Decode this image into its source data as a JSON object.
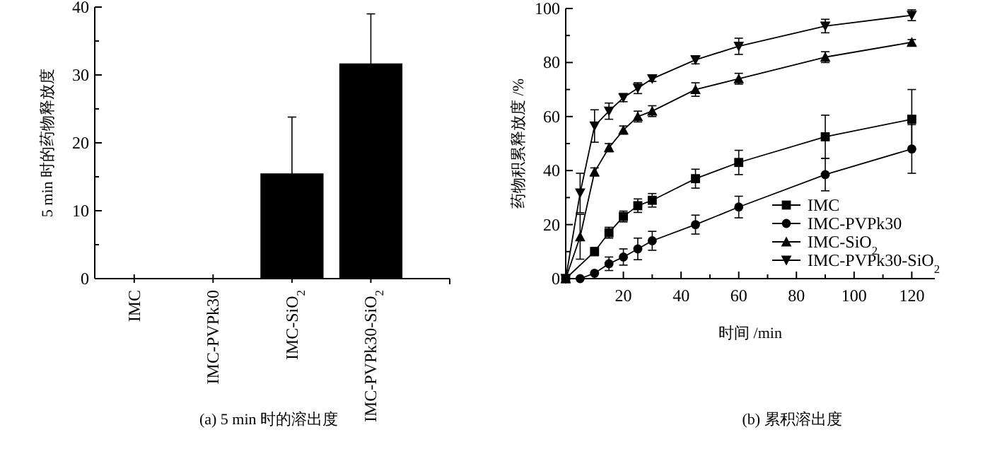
{
  "chart_data": [
    {
      "type": "bar",
      "title": "(a) 5 min 时的溶出度",
      "ylabel": "5 min 时的药物释放度",
      "categories": [
        "IMC",
        "IMC-PVPk30",
        "IMC-SiO$_{2}$",
        "IMC-PVPk30-SiO$_{2}$"
      ],
      "values": [
        0,
        0,
        15.5,
        31.7
      ],
      "errors": [
        null,
        null,
        8.3,
        7.3
      ],
      "color": "#000000",
      "ylim": [
        0,
        40
      ],
      "yticks": [
        0,
        {
          "value": 5,
          "label": null
        },
        10,
        {
          "value": 15,
          "label": null
        },
        20,
        {
          "value": 25,
          "label": null
        },
        30,
        {
          "value": 35,
          "label": null
        },
        40
      ]
    },
    {
      "type": "line",
      "title": "(b) 累积溶出度",
      "xlabel": "时间 /min",
      "ylabel": "药物积累释放度 /%",
      "xlim": [
        0,
        128
      ],
      "ylim": [
        0,
        100
      ],
      "legend": "bottom right",
      "line_style": "solid",
      "xticks": [
        {
          "value": 10,
          "label": null
        },
        20,
        {
          "value": 30,
          "label": null
        },
        40,
        {
          "value": 50,
          "label": null
        },
        60,
        {
          "value": 70,
          "label": null
        },
        80,
        {
          "value": 90,
          "label": null
        },
        100,
        {
          "value": 110,
          "label": null
        },
        120
      ],
      "yticks": [
        0,
        {
          "value": 10,
          "label": null
        },
        20,
        {
          "value": 30,
          "label": null
        },
        40,
        {
          "value": 50,
          "label": null
        },
        60,
        {
          "value": 70,
          "label": null
        },
        80,
        {
          "value": 90,
          "label": null
        },
        100
      ],
      "series": [
        {
          "name": "IMC",
          "color": "#000000",
          "marker": "square",
          "x": [
            0,
            10,
            15,
            20,
            25,
            30,
            45,
            60,
            90,
            120
          ],
          "values": [
            0,
            10,
            17,
            23,
            27,
            29,
            37,
            43,
            52.5,
            59
          ],
          "errors": [
            null,
            1.5,
            2,
            2,
            2.5,
            2.5,
            3.5,
            4.5,
            8,
            11
          ]
        },
        {
          "name": "IMC-PVPk30",
          "color": "#000000",
          "marker": "circle",
          "x": [
            5,
            10,
            15,
            20,
            25,
            30,
            45,
            60,
            90,
            120
          ],
          "values": [
            0,
            2,
            5.5,
            8,
            11,
            14,
            20,
            26.5,
            38.5,
            48
          ],
          "errors": [
            null,
            null,
            2.5,
            3,
            4,
            3.5,
            3.5,
            4,
            6,
            9
          ]
        },
        {
          "name": "IMC-SiO$_{2}$",
          "color": "#000000",
          "marker": "triangle",
          "x": [
            0,
            5,
            10,
            15,
            20,
            25,
            30,
            45,
            60,
            90,
            120
          ],
          "values": [
            0,
            15.5,
            39.5,
            48.5,
            55,
            60,
            62,
            70,
            74,
            82,
            87.5
          ],
          "errors": [
            null,
            8.3,
            1.5,
            1.5,
            1.5,
            2,
            2,
            2.5,
            2,
            2,
            1
          ]
        },
        {
          "name": "IMC-PVPk30-SiO$_{2}$",
          "color": "#000000",
          "marker": "triangle-down",
          "x": [
            0,
            5,
            10,
            15,
            20,
            25,
            30,
            45,
            60,
            90,
            120
          ],
          "values": [
            0,
            31.7,
            56.5,
            62,
            67,
            70.5,
            74,
            81,
            86,
            93.5,
            97.5
          ],
          "errors": [
            null,
            7.3,
            6,
            3,
            1.5,
            2,
            1,
            1.5,
            3,
            2.5,
            2
          ]
        }
      ]
    }
  ]
}
